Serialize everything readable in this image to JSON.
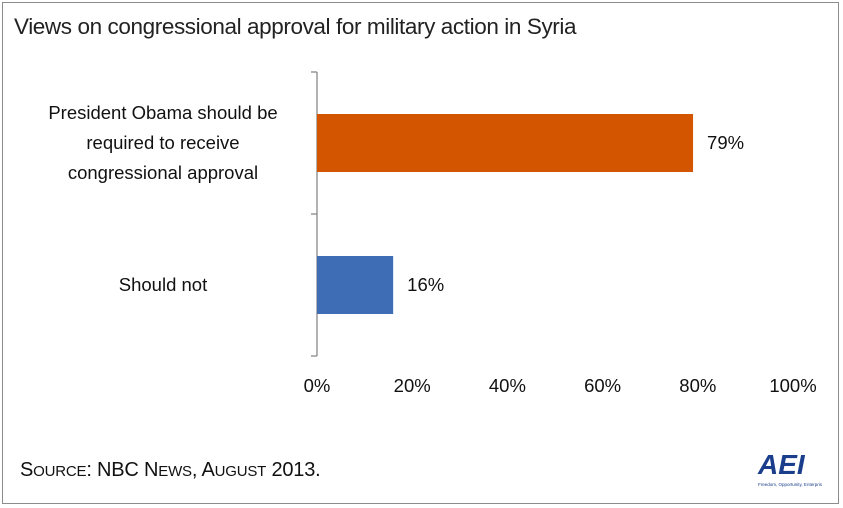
{
  "title": "Views on congressional approval for military action in Syria",
  "source": {
    "parts": [
      "S",
      "OURCE",
      ": NBC N",
      "EWS",
      ", A",
      "UGUST",
      " 2013."
    ]
  },
  "logo": {
    "text": "AEI",
    "tagline": "Freedom, Opportunity, Enterprise.",
    "color": "#1a3e8c"
  },
  "chart_data": {
    "type": "bar",
    "orientation": "horizontal",
    "categories": [
      [
        "President Obama should be",
        "required to receive",
        "congressional approval"
      ],
      [
        "Should not"
      ]
    ],
    "values": [
      79,
      16
    ],
    "value_labels": [
      "79%",
      "16%"
    ],
    "colors": [
      "#d45500",
      "#3e6cb5"
    ],
    "xlim": [
      0,
      100
    ],
    "xticks": [
      "0%",
      "20%",
      "40%",
      "60%",
      "80%",
      "100%"
    ],
    "grid": false,
    "legend": "none"
  }
}
